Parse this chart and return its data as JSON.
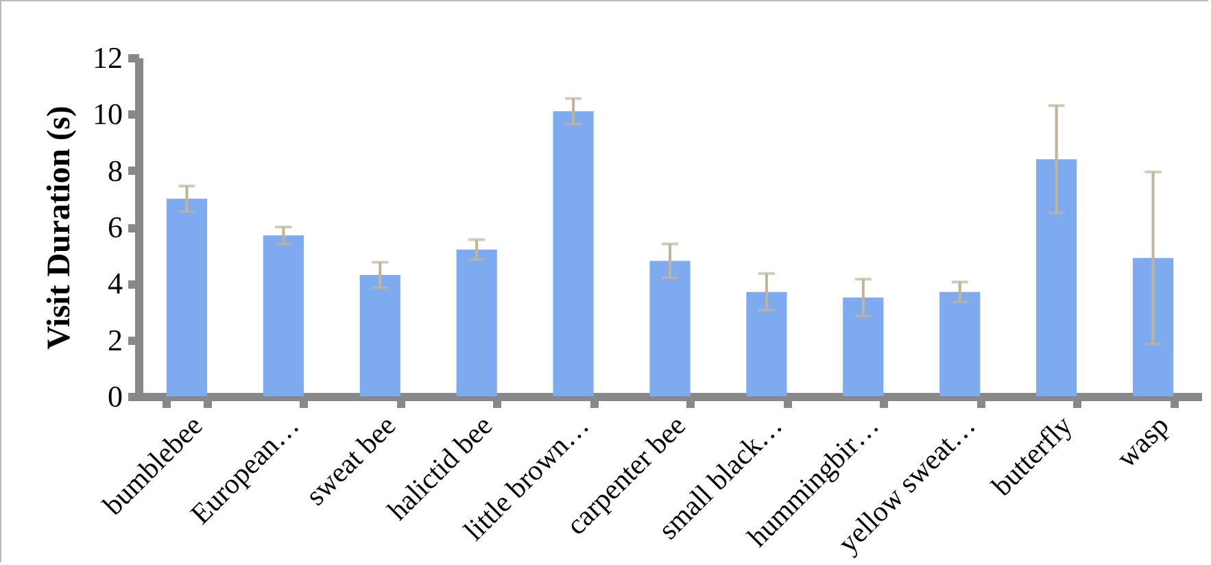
{
  "chart_data": {
    "type": "bar",
    "ylabel": "Visit Duration (s)",
    "categories": [
      "bumblebee",
      "European…",
      "sweat bee",
      "halictid bee",
      "little brown…",
      "carpenter bee",
      "small black…",
      "hummingbir…",
      "yellow sweat…",
      "butterfly",
      "wasp"
    ],
    "values": [
      7.0,
      5.7,
      4.3,
      5.2,
      10.1,
      4.8,
      3.7,
      3.5,
      3.7,
      8.4,
      4.9
    ],
    "errors": [
      0.45,
      0.3,
      0.45,
      0.35,
      0.45,
      0.6,
      0.65,
      0.65,
      0.35,
      1.9,
      3.05
    ],
    "color": "#7eaaf0",
    "ylim": [
      0,
      12
    ],
    "yticks": [
      0,
      2,
      4,
      6,
      8,
      10,
      12
    ],
    "grid": false
  }
}
